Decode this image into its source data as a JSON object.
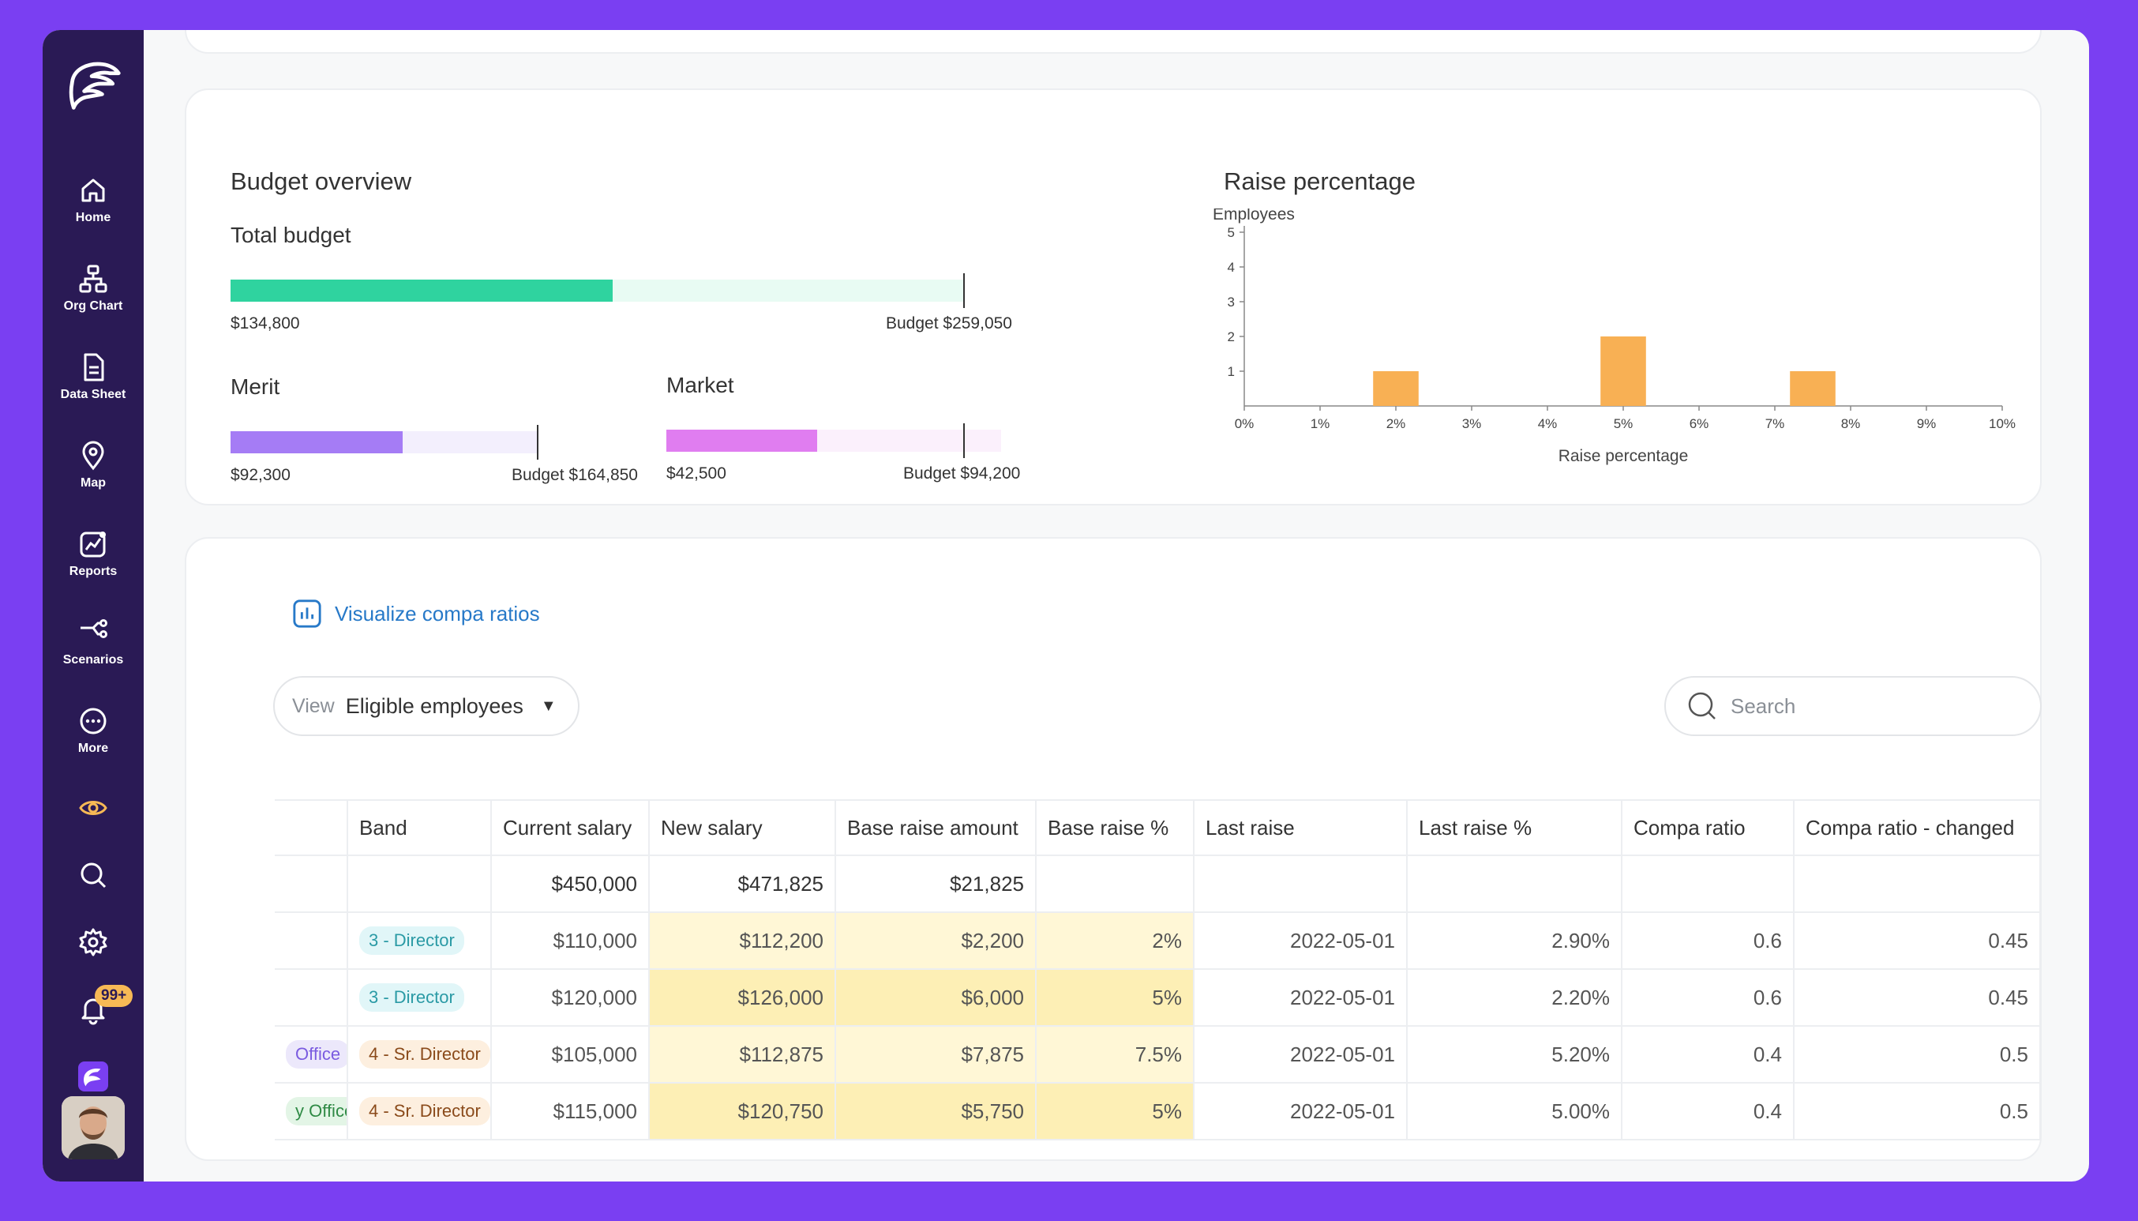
{
  "sidebar": {
    "items": [
      {
        "label": "Home",
        "icon": "home-icon"
      },
      {
        "label": "Org Chart",
        "icon": "org-chart-icon"
      },
      {
        "label": "Data Sheet",
        "icon": "data-sheet-icon"
      },
      {
        "label": "Map",
        "icon": "map-pin-icon"
      },
      {
        "label": "Reports",
        "icon": "reports-icon"
      },
      {
        "label": "Scenarios",
        "icon": "scenarios-icon"
      },
      {
        "label": "More",
        "icon": "more-icon"
      }
    ],
    "notifications_badge": "99+"
  },
  "budget": {
    "title": "Budget overview",
    "total": {
      "label": "Total budget",
      "spent": "$134,800",
      "budget": "Budget $259,050",
      "fill_fraction": 0.52,
      "color": "#2fd39f",
      "track": "#e8fbf3"
    },
    "merit": {
      "label": "Merit",
      "spent": "$92,300",
      "budget": "Budget $164,850",
      "fill_fraction": 0.56,
      "color": "#a57cf5",
      "track": "#f3effd"
    },
    "market": {
      "label": "Market",
      "spent": "$42,500",
      "budget": "Budget $94,200",
      "fill_fraction": 0.45,
      "color": "#e07df0",
      "track": "#fbf0fc"
    }
  },
  "raise_chart": {
    "title": "Raise percentage"
  },
  "chart_data": {
    "type": "bar",
    "title": "Raise percentage",
    "ylabel": "Employees",
    "xlabel": "Raise percentage",
    "x_ticks": [
      "0%",
      "1%",
      "2%",
      "3%",
      "4%",
      "5%",
      "6%",
      "7%",
      "8%",
      "9%",
      "10%"
    ],
    "y_ticks": [
      "1",
      "2",
      "3",
      "4",
      "5"
    ],
    "ylim": [
      0,
      5
    ],
    "xlim": [
      0,
      10
    ],
    "bins": [
      {
        "from": 1.7,
        "to": 2.3,
        "value": 1
      },
      {
        "from": 4.7,
        "to": 5.3,
        "value": 2
      },
      {
        "from": 7.2,
        "to": 7.8,
        "value": 1
      }
    ],
    "bar_color": "#f8b054",
    "grid": false
  },
  "compa": {
    "link_label": "Visualize compa ratios"
  },
  "view": {
    "label": "View",
    "value": "Eligible employees"
  },
  "search": {
    "placeholder": "Search"
  },
  "table": {
    "headers": [
      "Band",
      "Current salary",
      "New salary",
      "Base raise amount",
      "Base raise %",
      "Last raise",
      "Last raise %",
      "Compa ratio",
      "Compa ratio - changed"
    ],
    "total": {
      "current": "$450,000",
      "new": "$471,825",
      "raise_amount": "$21,825"
    },
    "rows": [
      {
        "office": "",
        "band": "3 - Director",
        "current": "$110,000",
        "new": "$112,200",
        "raise_amount": "$2,200",
        "raise_pct": "2%",
        "last_raise": "2022-05-01",
        "last_raise_pct": "2.90%",
        "compa": "0.6",
        "compa_changed": "0.45"
      },
      {
        "office": "",
        "band": "3 - Director",
        "current": "$120,000",
        "new": "$126,000",
        "raise_amount": "$6,000",
        "raise_pct": "5%",
        "last_raise": "2022-05-01",
        "last_raise_pct": "2.20%",
        "compa": "0.6",
        "compa_changed": "0.45"
      },
      {
        "office": "Office",
        "band": "4 - Sr. Director",
        "current": "$105,000",
        "new": "$112,875",
        "raise_amount": "$7,875",
        "raise_pct": "7.5%",
        "last_raise": "2022-05-01",
        "last_raise_pct": "5.20%",
        "compa": "0.4",
        "compa_changed": "0.5"
      },
      {
        "office": "y Office",
        "band": "4 - Sr. Director",
        "current": "$115,000",
        "new": "$120,750",
        "raise_amount": "$5,750",
        "raise_pct": "5%",
        "last_raise": "2022-05-01",
        "last_raise_pct": "5.00%",
        "compa": "0.4",
        "compa_changed": "0.5"
      }
    ]
  }
}
